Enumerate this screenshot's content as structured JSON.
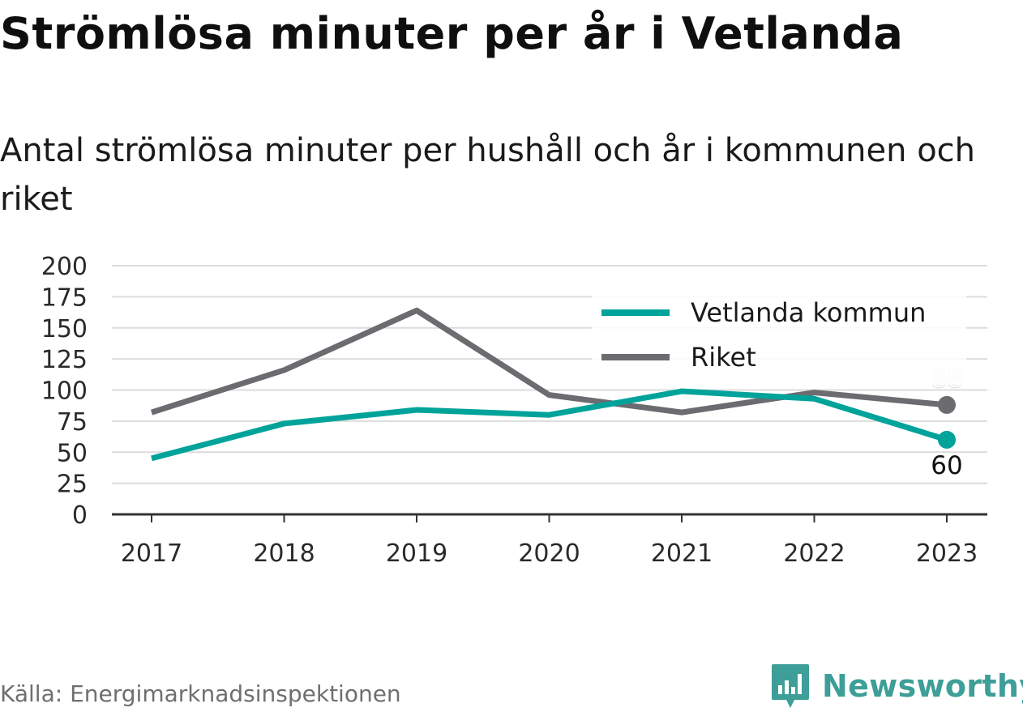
{
  "title": "Strömlösa minuter per år i Vetlanda",
  "subtitle": "Antal strömlösa minuter per hushåll och år i kommunen och riket",
  "source": "Källa: Energimarknadsinspektionen",
  "brand": {
    "name": "Newsworthy",
    "icon": "bar-chart-badge-icon",
    "color": "#3e9e98"
  },
  "chart_data": {
    "type": "line",
    "categories": [
      "2017",
      "2018",
      "2019",
      "2020",
      "2021",
      "2022",
      "2023"
    ],
    "series": [
      {
        "name": "Vetlanda kommun",
        "color": "#00a39a",
        "values": [
          45,
          73,
          84,
          80,
          99,
          93,
          60
        ],
        "end_label": "60"
      },
      {
        "name": "Riket",
        "color": "#6b6b70",
        "values": [
          82,
          116,
          164,
          96,
          82,
          98,
          88
        ],
        "end_label": "88"
      }
    ],
    "yticks": [
      "0",
      "25",
      "50",
      "75",
      "100",
      "125",
      "150",
      "175",
      "200"
    ],
    "ylim": [
      0,
      200
    ],
    "grid": true,
    "legend": "top-right"
  }
}
